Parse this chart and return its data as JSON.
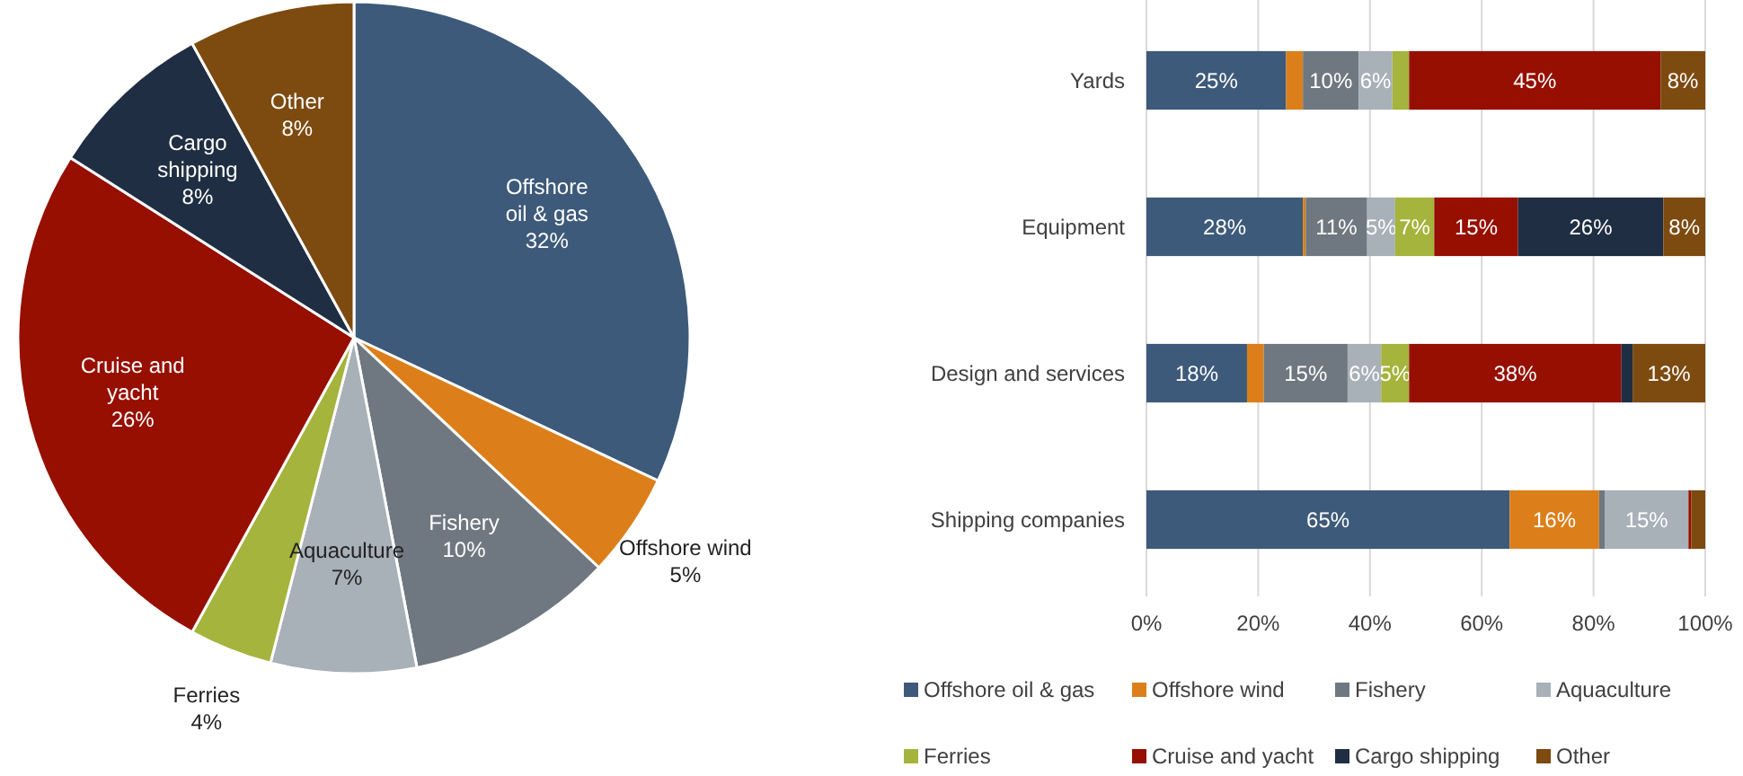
{
  "chart_data": [
    {
      "type": "pie",
      "categories": [
        "Offshore oil & gas",
        "Offshore wind",
        "Fishery",
        "Aquaculture",
        "Ferries",
        "Cruise and yacht",
        "Cargo shipping",
        "Other"
      ],
      "values": [
        32,
        5,
        10,
        7,
        4,
        26,
        8,
        8
      ],
      "colors": [
        "#3d5a7a",
        "#dc7f1a",
        "#6f7880",
        "#a8b0b8",
        "#a4b43c",
        "#960f00",
        "#1f2e42",
        "#7d4a10"
      ],
      "value_labels": [
        "32%",
        "5%",
        "10%",
        "7%",
        "4%",
        "26%",
        "8%",
        "8%"
      ]
    },
    {
      "type": "bar",
      "orientation": "horizontal",
      "stacked": true,
      "categories": [
        "Yards",
        "Equipment",
        "Design and services",
        "Shipping companies"
      ],
      "xlim": [
        0,
        100
      ],
      "xticks": [
        {
          "value": 0,
          "label": "0%"
        },
        {
          "value": 20,
          "label": "20%"
        },
        {
          "value": 40,
          "label": "40%"
        },
        {
          "value": 60,
          "label": "60%"
        },
        {
          "value": 80,
          "label": "80%"
        },
        {
          "value": 100,
          "label": "100%"
        }
      ],
      "grid": "x",
      "legend": "bottom",
      "series": [
        {
          "name": "Offshore oil & gas",
          "color": "#3d5a7a",
          "values": [
            25,
            28,
            18,
            65
          ],
          "value_labels": [
            "25%",
            "28%",
            "18%",
            "65%"
          ]
        },
        {
          "name": "Offshore wind",
          "color": "#dc7f1a",
          "values": [
            3,
            0.5,
            3,
            16
          ],
          "value_labels": [
            null,
            null,
            null,
            "16%"
          ]
        },
        {
          "name": "Fishery",
          "color": "#6f7880",
          "values": [
            10,
            11,
            15,
            1
          ],
          "value_labels": [
            "10%",
            "11%",
            "15%",
            null
          ]
        },
        {
          "name": "Aquaculture",
          "color": "#a8b0b8",
          "values": [
            6,
            5,
            6,
            15
          ],
          "value_labels": [
            "6%",
            "5%",
            "6%",
            "15%"
          ]
        },
        {
          "name": "Ferries",
          "color": "#a4b43c",
          "values": [
            3,
            7,
            5,
            0
          ],
          "value_labels": [
            null,
            "7%",
            "5%",
            null
          ]
        },
        {
          "name": "Cruise and yacht",
          "color": "#960f00",
          "values": [
            45,
            15,
            38,
            0.5
          ],
          "value_labels": [
            "45%",
            "15%",
            "38%",
            null
          ]
        },
        {
          "name": "Cargo shipping",
          "color": "#1f2e42",
          "values": [
            0,
            26,
            2,
            0
          ],
          "value_labels": [
            null,
            "26%",
            null,
            null
          ]
        },
        {
          "name": "Other",
          "color": "#7d4a10",
          "values": [
            8,
            7.5,
            13,
            2.5
          ],
          "value_labels": [
            "8%",
            "8%",
            "13%",
            null
          ]
        }
      ]
    }
  ]
}
